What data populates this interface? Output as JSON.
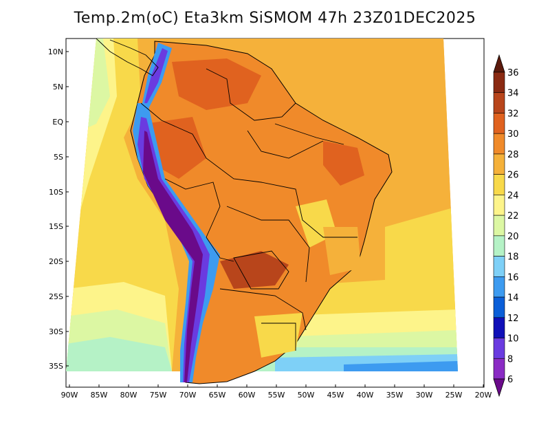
{
  "title": "Temp.2m(oC) Eta3km SiSMOM 47h 23Z01DEC2025",
  "map": {
    "lat_labels": [
      "10N",
      "5N",
      "EQ",
      "5S",
      "10S",
      "15S",
      "20S",
      "25S",
      "30S",
      "35S"
    ],
    "lon_labels": [
      "90W",
      "85W",
      "80W",
      "75W",
      "70W",
      "65W",
      "60W",
      "55W",
      "50W",
      "45W",
      "40W",
      "35W",
      "30W",
      "25W",
      "20W"
    ],
    "region_extent": {
      "lon_min": -91,
      "lon_max": -20,
      "lat_min": -38,
      "lat_max": 12
    }
  },
  "colorbar": {
    "unit": "oC",
    "labels": [
      "6",
      "8",
      "10",
      "12",
      "14",
      "16",
      "18",
      "20",
      "22",
      "24",
      "26",
      "28",
      "30",
      "32",
      "34",
      "36"
    ],
    "colors": [
      "#6a0a8a",
      "#8a2bc4",
      "#6a3be0",
      "#1010b8",
      "#0b5fd8",
      "#3d9bf0",
      "#7ed0f7",
      "#b5f2c6",
      "#dcf7a3",
      "#fdf48a",
      "#f8d94a",
      "#f5b13a",
      "#f08a2a",
      "#e0621f",
      "#b8451b",
      "#8a2a12",
      "#5c1a0c"
    ]
  }
}
